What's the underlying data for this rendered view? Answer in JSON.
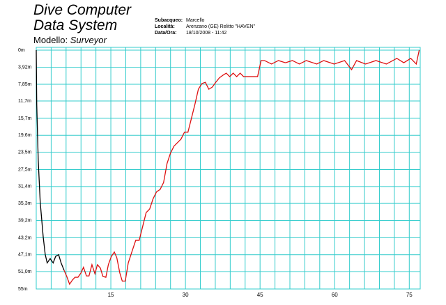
{
  "header": {
    "title_line1": "Dive Computer",
    "title_line2": "Data System",
    "model_label": "Modello:",
    "model_value": "Surveyor",
    "info": [
      [
        "Subacqueo:",
        "Marcello"
      ],
      [
        "Località:",
        "Arenzano (GE) Relitto \"HAVEN\""
      ],
      [
        "Data/Ora:",
        "18/10/2008 - 11:42"
      ]
    ]
  },
  "chart_data": {
    "type": "line",
    "y_inverted": true,
    "grid": true,
    "grid_color": "#33cccc",
    "xlim": [
      0,
      77.2
    ],
    "ylim": [
      0,
      55
    ],
    "xticks": [
      15,
      30,
      45,
      60,
      75
    ],
    "xgrid": [
      3,
      6,
      9,
      12,
      15,
      18,
      21,
      24,
      27,
      30,
      33,
      36,
      39,
      42,
      45,
      48,
      51,
      54,
      57,
      60,
      63,
      66,
      69,
      72,
      75
    ],
    "yticks": [
      {
        "value": 0,
        "label": "0m"
      },
      {
        "value": 3.92,
        "label": "3,92m"
      },
      {
        "value": 7.85,
        "label": "7,85m"
      },
      {
        "value": 11.7,
        "label": "11,7m"
      },
      {
        "value": 15.7,
        "label": "15,7m"
      },
      {
        "value": 19.6,
        "label": "19,6m"
      },
      {
        "value": 23.5,
        "label": "23,5m"
      },
      {
        "value": 27.5,
        "label": "27,5m"
      },
      {
        "value": 31.4,
        "label": "31,4m"
      },
      {
        "value": 35.3,
        "label": "35,3m"
      },
      {
        "value": 39.2,
        "label": "39,2m"
      },
      {
        "value": 43.2,
        "label": "43,2m"
      },
      {
        "value": 47.1,
        "label": "47,1m"
      },
      {
        "value": 51.0,
        "label": "51,0m"
      },
      {
        "value": 55,
        "label": "55m"
      }
    ],
    "series": [
      {
        "color": "#000000",
        "x": [
          0,
          0.1,
          0.4,
          0.8,
          1.4,
          1.8,
          2.2,
          2.8,
          3.4,
          3.9,
          4.5,
          5,
          5.6
        ],
        "values": [
          0,
          12.5,
          25.3,
          35,
          43,
          47,
          49,
          48,
          49,
          47.5,
          47.1,
          49,
          50.7
        ]
      },
      {
        "color": "#dd1111",
        "x": [
          5.6,
          6.2,
          6.7,
          7.3,
          7.8,
          8.4,
          9,
          9.5,
          10.1,
          10.6,
          11.2,
          11.8,
          12.3,
          12.9,
          13.4,
          14,
          14.5,
          15.1,
          15.7,
          16.2,
          16.8,
          17.3,
          17.9,
          18.5,
          19.3,
          20,
          20.7,
          21.4,
          22.1,
          22.8,
          23.5,
          24.2,
          24.9,
          25.6,
          26.3,
          27,
          27.7,
          28.4,
          29.1,
          29.8,
          30.5,
          31.2,
          31.9,
          32.6,
          33.3,
          34,
          34.7,
          35.4,
          36.1,
          36.8,
          37.5,
          38.2,
          38.9,
          39.6,
          40.3,
          41,
          41.7,
          43.1,
          44.5,
          45.2,
          45.9,
          47.3,
          48.7,
          50.1,
          51.5,
          52.9,
          54.3,
          56.4,
          57.8,
          59.9,
          62,
          63.4,
          64.4,
          66.2,
          68.3,
          70.4,
          72.5,
          73.9,
          75.3,
          76.4,
          77
        ],
        "values": [
          50.7,
          52.3,
          53.9,
          52.9,
          52.3,
          52.3,
          51.3,
          50,
          52,
          52,
          49.4,
          51.5,
          49.4,
          50.2,
          52.1,
          52.3,
          49.4,
          47.5,
          46.5,
          47.8,
          51.3,
          53.2,
          53.2,
          49,
          46.2,
          43.8,
          43.8,
          40.6,
          37.4,
          36.6,
          34.2,
          32.6,
          32.1,
          30.5,
          26.1,
          23.7,
          22.1,
          21.3,
          20.5,
          18.9,
          18.9,
          15.7,
          12.5,
          9,
          7.7,
          7.4,
          9,
          8.5,
          7.4,
          6.4,
          5.8,
          5.3,
          6.1,
          5.3,
          6.1,
          5.3,
          6.1,
          6.1,
          6.1,
          2.4,
          2.4,
          3.2,
          2.4,
          2.9,
          2.4,
          3.2,
          2.4,
          3.2,
          2.4,
          3.2,
          2.4,
          4.5,
          2.4,
          3.2,
          2.4,
          3.2,
          1.9,
          2.9,
          1.9,
          3.2,
          0
        ]
      }
    ]
  }
}
